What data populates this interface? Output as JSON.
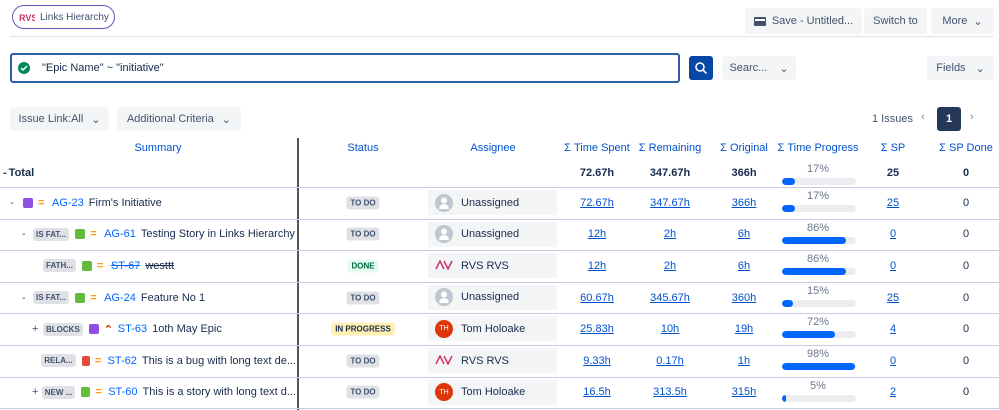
{
  "header": {
    "app_button": "Links Hierarchy",
    "save": "Save - Untitled...",
    "switch": "Switch to",
    "more": "More"
  },
  "search": {
    "query": "\"Epic Name\" ~ \"initiative\"",
    "select": "Searc...",
    "fields": "Fields"
  },
  "filters": {
    "issue_link": "Issue Link:All",
    "additional": "Additional Criteria"
  },
  "pagination": {
    "count": "1 Issues",
    "page": "1"
  },
  "table": {
    "columns": [
      "Summary",
      "Status",
      "Assignee",
      "Σ Time Spent",
      "Σ Remaining",
      "Σ Original",
      "Σ Time Progress",
      "Σ SP",
      "Σ SP Done"
    ],
    "total": {
      "expander": "-",
      "label": "Total",
      "time_spent": "72.67h",
      "remaining": "347.67h",
      "original": "366h",
      "progress": 17,
      "progress_label": "17%",
      "sp": "25",
      "sp_done": "0"
    },
    "rows": [
      {
        "expander": "-",
        "link_type": null,
        "key": "AG-23",
        "summary": "Firm's Initiative",
        "status": "TO DO",
        "assignee": "Unassigned",
        "avatar": null,
        "time_spent": "72.67h",
        "remaining": "347.67h",
        "original": "366h",
        "progress": 17,
        "progress_label": "17%",
        "sp": "25",
        "sp_done": "0"
      },
      {
        "expander": "-",
        "link_type": "IS FAT...",
        "key": "AG-61",
        "summary": "Testing Story in Links Hierarchy",
        "status": "TO DO",
        "assignee": "Unassigned",
        "avatar": null,
        "time_spent": "12h",
        "remaining": "2h",
        "original": "6h",
        "progress": 86,
        "progress_label": "86%",
        "sp": "0",
        "sp_done": "0"
      },
      {
        "expander": null,
        "link_type": "FATH...",
        "key": "ST-67",
        "summary": "westtt",
        "status": "DONE",
        "assignee": "RVS RVS",
        "avatar": null,
        "time_spent": "12h",
        "remaining": "2h",
        "original": "6h",
        "progress": 86,
        "progress_label": "86%",
        "sp": "0",
        "sp_done": "0"
      },
      {
        "expander": "-",
        "link_type": "IS FAT...",
        "key": "AG-24",
        "summary": "Feature No 1",
        "status": "TO DO",
        "assignee": "Unassigned",
        "avatar": null,
        "time_spent": "60.67h",
        "remaining": "345.67h",
        "original": "360h",
        "progress": 15,
        "progress_label": "15%",
        "sp": "25",
        "sp_done": "0"
      },
      {
        "expander": "+",
        "link_type": "BLOCKS",
        "key": "ST-63",
        "summary": "1oth May Epic",
        "status": "IN PROGRESS",
        "assignee": "Tom Holoake",
        "avatar": "TH",
        "time_spent": "25.83h",
        "remaining": "10h",
        "original": "19h",
        "progress": 72,
        "progress_label": "72%",
        "sp": "4",
        "sp_done": "0"
      },
      {
        "expander": null,
        "link_type": "RELA...",
        "key": "ST-62",
        "summary": "This is a bug with long text de...",
        "status": "TO DO",
        "assignee": "RVS RVS",
        "avatar": null,
        "time_spent": "9.33h",
        "remaining": "0.17h",
        "original": "1h",
        "progress": 98,
        "progress_label": "98%",
        "sp": "0",
        "sp_done": "0"
      },
      {
        "expander": "+",
        "link_type": "NEW ...",
        "key": "ST-60",
        "summary": "This is a story with long text d...",
        "status": "TO DO",
        "assignee": "Tom Holoake",
        "avatar": "TH",
        "time_spent": "16.5h",
        "remaining": "313.5h",
        "original": "315h",
        "progress": 5,
        "progress_label": "5%",
        "sp": "2",
        "sp_done": "0"
      }
    ]
  }
}
